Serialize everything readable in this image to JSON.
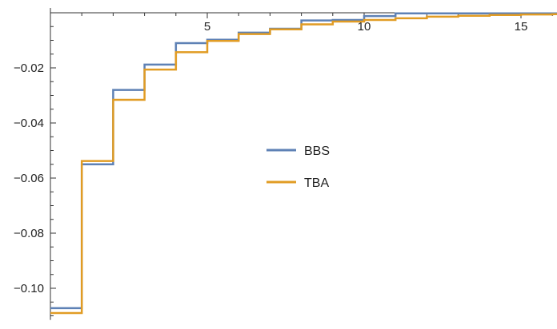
{
  "chart_data": {
    "type": "line",
    "step": true,
    "title": "",
    "xlabel": "",
    "ylabel": "",
    "xlim": [
      0,
      16.3
    ],
    "ylim": [
      -0.1115,
      0.0
    ],
    "grid": false,
    "legend_position": "center-right",
    "x_ticks": [
      5,
      10,
      15
    ],
    "x_tick_labels": [
      "5",
      "10",
      "15"
    ],
    "y_ticks": [
      -0.02,
      -0.04,
      -0.06,
      -0.08,
      -0.1
    ],
    "y_tick_labels": [
      "−0.02",
      "−0.04",
      "−0.06",
      "−0.08",
      "−0.10"
    ],
    "x": [
      0,
      1,
      2,
      3,
      4,
      5,
      6,
      7,
      8,
      9,
      10,
      11,
      12,
      13,
      14,
      15,
      16,
      16.3
    ],
    "series": [
      {
        "name": "BBS",
        "color": "#5e81b5",
        "values": [
          -0.1072,
          -0.055,
          -0.028,
          -0.0188,
          -0.011,
          -0.0098,
          -0.0072,
          -0.0058,
          -0.0028,
          -0.0026,
          -0.0012,
          -0.0002,
          -0.0002,
          -0.0002,
          -0.0002,
          -0.0002,
          -0.0002,
          -0.0002
        ]
      },
      {
        "name": "TBA",
        "color": "#e19c24",
        "values": [
          -0.109,
          -0.0538,
          -0.0316,
          -0.0206,
          -0.0143,
          -0.0102,
          -0.0077,
          -0.006,
          -0.0042,
          -0.0032,
          -0.0026,
          -0.002,
          -0.0014,
          -0.0011,
          -0.0008,
          -0.0006,
          -0.0005,
          -0.0005
        ]
      }
    ]
  }
}
